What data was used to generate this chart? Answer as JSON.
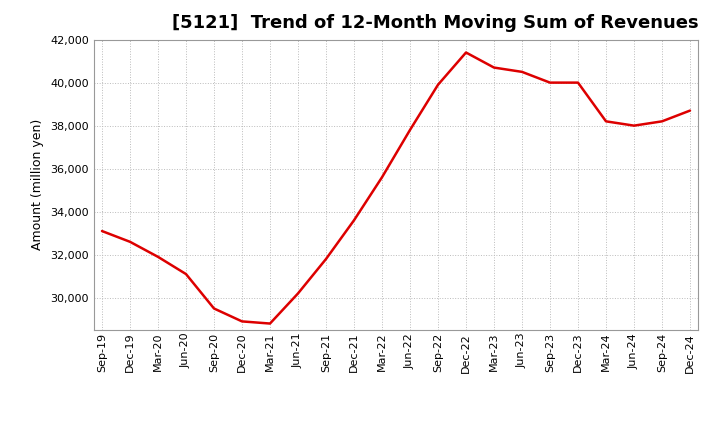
{
  "title": "[5121]  Trend of 12-Month Moving Sum of Revenues",
  "ylabel": "Amount (million yen)",
  "line_color": "#dd0000",
  "background_color": "#ffffff",
  "plot_bg_color": "#ffffff",
  "grid_color": "#bbbbbb",
  "labels": [
    "Sep-19",
    "Dec-19",
    "Mar-20",
    "Jun-20",
    "Sep-20",
    "Dec-20",
    "Mar-21",
    "Jun-21",
    "Sep-21",
    "Dec-21",
    "Mar-22",
    "Jun-22",
    "Sep-22",
    "Dec-22",
    "Mar-23",
    "Jun-23",
    "Sep-23",
    "Dec-23",
    "Mar-24",
    "Jun-24",
    "Sep-24",
    "Dec-24"
  ],
  "values": [
    33100,
    32600,
    31900,
    31100,
    29500,
    28900,
    28800,
    30200,
    31800,
    33600,
    35600,
    37800,
    39900,
    41400,
    40700,
    40500,
    40000,
    40000,
    38200,
    38000,
    38200,
    38700
  ],
  "ylim_min": 28500,
  "ylim_max": 42000,
  "ytick_min": 30000,
  "ytick_max": 42000,
  "ytick_step": 2000,
  "title_fontsize": 13,
  "axis_fontsize": 9,
  "tick_fontsize": 8
}
